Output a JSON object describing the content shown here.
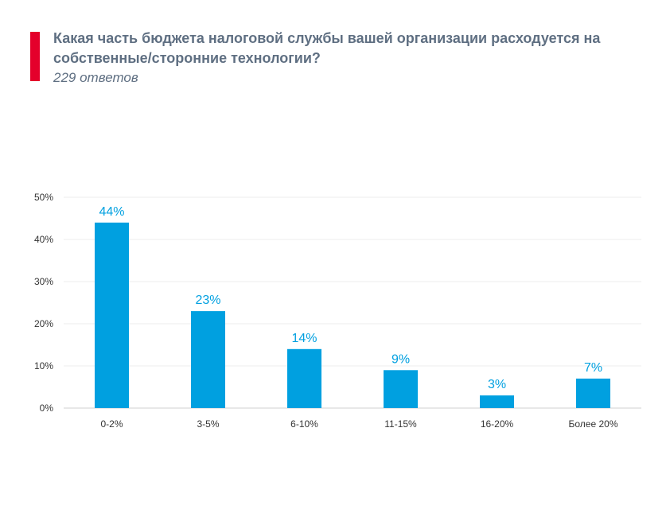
{
  "header": {
    "title": "Какая часть бюджета налоговой службы вашей организации расходуется на собственные/сторонние технологии?",
    "subtitle": "229 ответов"
  },
  "colors": {
    "accent": "#e4002b",
    "bar": "#00a0e0",
    "label": "#00a0e0",
    "text": "#5f6f82"
  },
  "chart_data": {
    "type": "bar",
    "categories": [
      "0-2%",
      "3-5%",
      "6-10%",
      "11-15%",
      "16-20%",
      "Более 20%"
    ],
    "values": [
      44,
      23,
      14,
      9,
      3,
      7
    ],
    "value_labels": [
      "44%",
      "23%",
      "14%",
      "9%",
      "3%",
      "7%"
    ],
    "y_ticks": [
      0,
      10,
      20,
      30,
      40,
      50
    ],
    "y_tick_labels": [
      "0%",
      "10%",
      "20%",
      "30%",
      "40%",
      "50%"
    ],
    "ylim": [
      0,
      50
    ],
    "grid": true,
    "legend": false
  }
}
